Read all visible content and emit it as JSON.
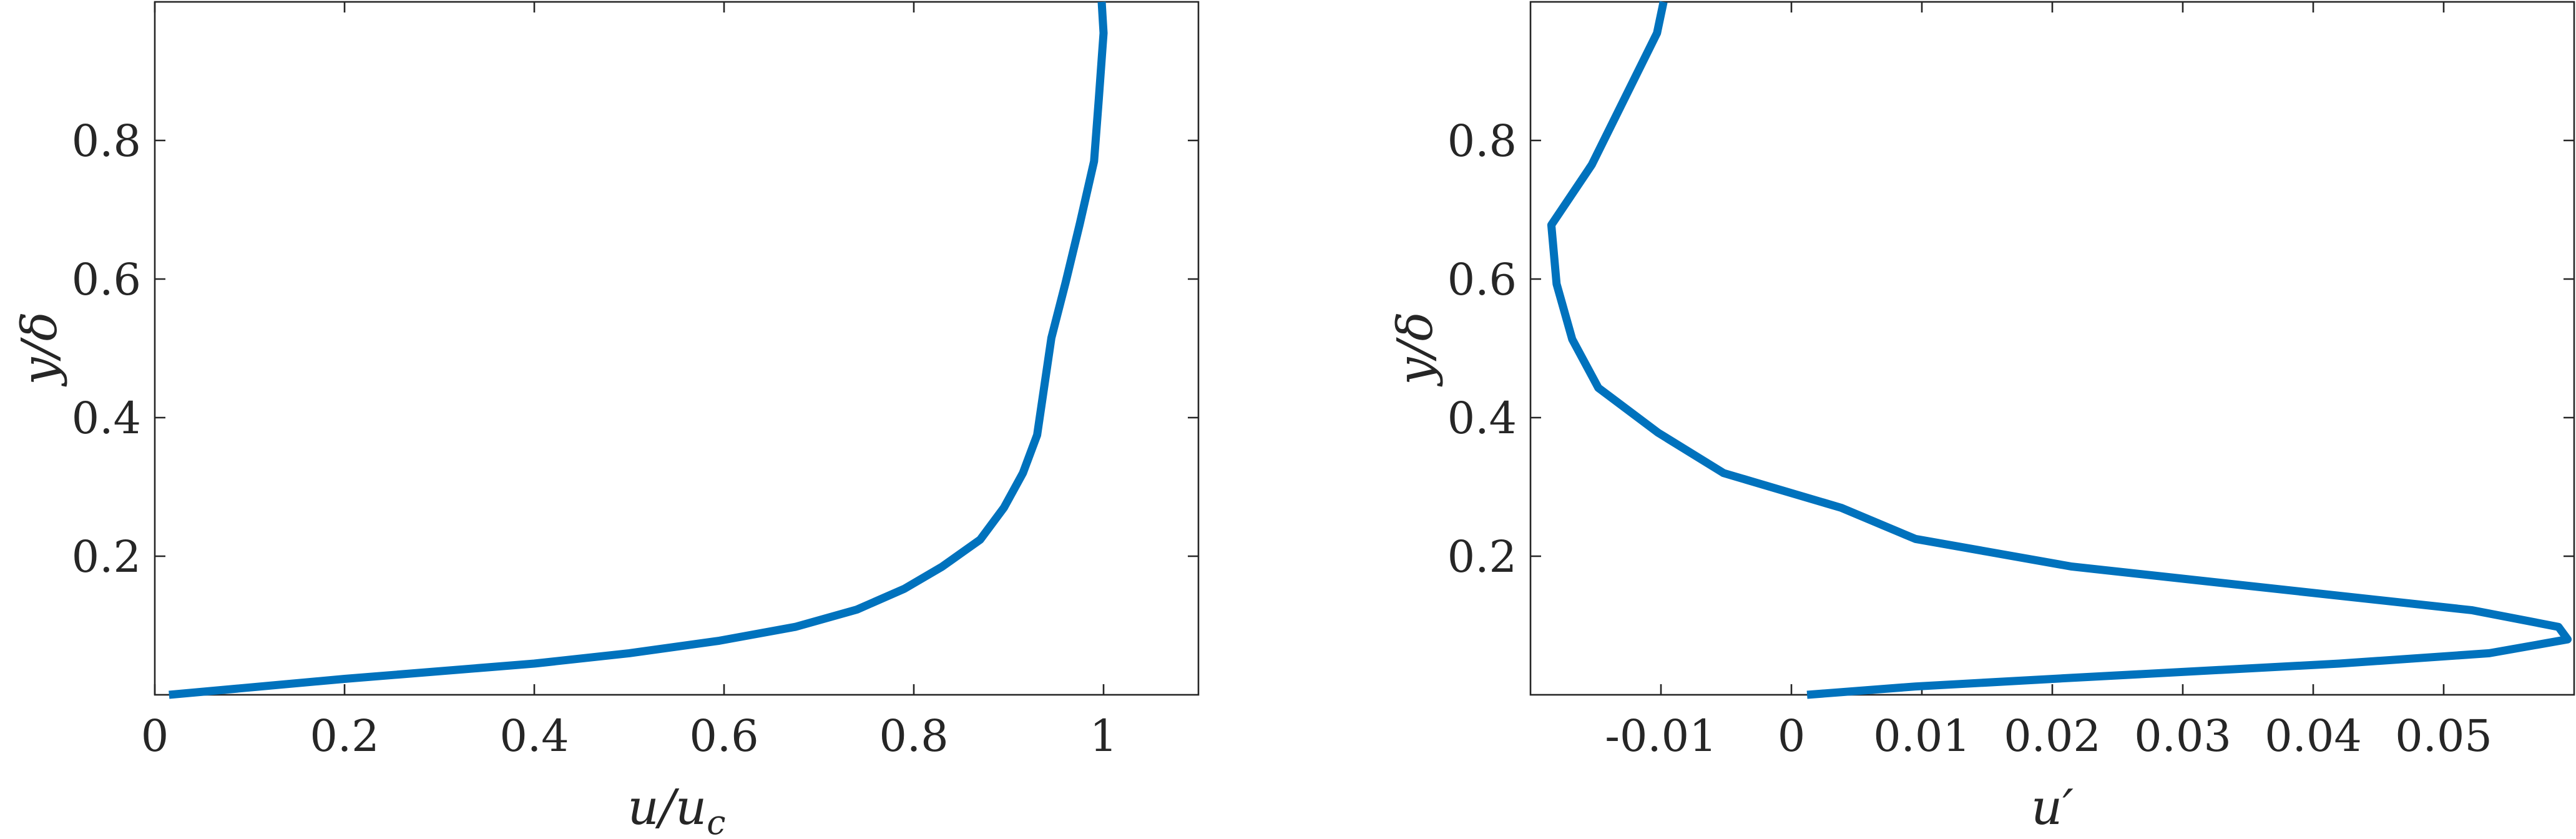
{
  "chart_data": [
    {
      "type": "line",
      "xlabel": "u/u_c",
      "xlabel_parts": {
        "main": "u/u",
        "sub": "c"
      },
      "ylabel": "y/δ",
      "xlim": [
        0,
        1.1
      ],
      "ylim": [
        0,
        1.0
      ],
      "xticks": [
        0,
        0.2,
        0.4,
        0.6,
        0.8,
        1
      ],
      "xtick_labels": [
        "0",
        "0.2",
        "0.4",
        "0.6",
        "0.8",
        "1"
      ],
      "yticks": [
        0.2,
        0.4,
        0.6,
        0.8
      ],
      "ytick_labels": [
        "0.2",
        "0.4",
        "0.6",
        "0.8"
      ],
      "grid": false,
      "series": [
        {
          "color": "#0072BD",
          "x": [
            0.015,
            0.2,
            0.4,
            0.5,
            0.595,
            0.675,
            0.74,
            0.79,
            0.83,
            0.87,
            0.895,
            0.915,
            0.93,
            0.945,
            0.96,
            0.975,
            0.99,
            0.995,
            1.0,
            0.998
          ],
          "y": [
            0.0,
            0.023,
            0.045,
            0.06,
            0.078,
            0.098,
            0.123,
            0.153,
            0.185,
            0.224,
            0.27,
            0.32,
            0.375,
            0.515,
            0.595,
            0.68,
            0.77,
            0.86,
            0.955,
            1.0
          ]
        }
      ]
    },
    {
      "type": "line",
      "xlabel": "u′",
      "ylabel": "y/δ",
      "xlim": [
        -0.02,
        0.06
      ],
      "ylim": [
        0,
        1.0
      ],
      "xticks": [
        -0.01,
        0,
        0.01,
        0.02,
        0.03,
        0.04,
        0.05
      ],
      "xtick_labels": [
        "-0.01",
        "0",
        "0.01",
        "0.02",
        "0.03",
        "0.04",
        "0.05"
      ],
      "yticks": [
        0.2,
        0.4,
        0.6,
        0.8
      ],
      "ytick_labels": [
        "0.2",
        "0.4",
        "0.6",
        "0.8"
      ],
      "grid": false,
      "series": [
        {
          "color": "#0072BD",
          "x": [
            0.0012,
            0.0095,
            0.021,
            0.042,
            0.0535,
            0.0595,
            0.0588,
            0.0522,
            0.0215,
            0.0095,
            0.0038,
            -0.0052,
            -0.0102,
            -0.0148,
            -0.0168,
            -0.018,
            -0.0184,
            -0.0153,
            -0.0103,
            -0.0098
          ],
          "y": [
            0.0,
            0.012,
            0.024,
            0.045,
            0.06,
            0.08,
            0.098,
            0.122,
            0.185,
            0.225,
            0.27,
            0.32,
            0.378,
            0.443,
            0.513,
            0.593,
            0.678,
            0.765,
            0.955,
            1.0
          ]
        }
      ]
    }
  ]
}
